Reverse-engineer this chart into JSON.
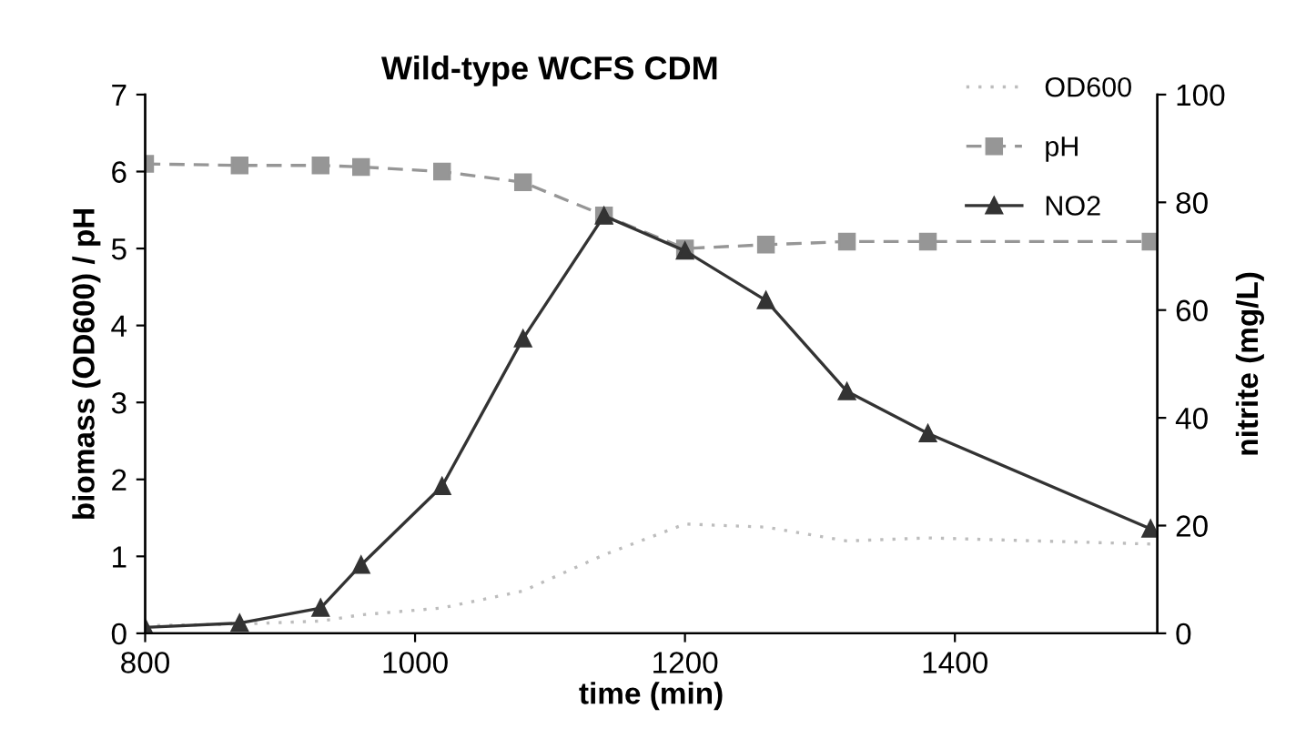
{
  "chart_data": {
    "type": "line",
    "title": "Wild-type WCFS CDM",
    "xlabel": "time (min)",
    "ylabel": "biomass (OD600) / pH",
    "y2label": "nitrite (mg/L)",
    "x": [
      800,
      870,
      930,
      960,
      1020,
      1080,
      1140,
      1200,
      1260,
      1320,
      1380,
      1545
    ],
    "series": [
      {
        "name": "OD600",
        "color": "#bdbdbd",
        "line_style": "dotted",
        "marker": "none",
        "values": [
          0.1,
          0.12,
          0.16,
          0.24,
          0.33,
          0.55,
          1.02,
          1.42,
          1.38,
          1.2,
          1.24,
          1.16
        ]
      },
      {
        "name": "pH",
        "color": "#969696",
        "line_style": "dashed",
        "marker": "square",
        "values": [
          6.1,
          6.08,
          6.08,
          6.06,
          6.0,
          5.86,
          5.43,
          5.0,
          5.05,
          5.09,
          5.09,
          5.09
        ]
      },
      {
        "name": "NO2",
        "color": "#333333",
        "line_style": "solid",
        "marker": "triangle",
        "axis": "y2",
        "values": [
          1.1,
          1.9,
          4.7,
          12.7,
          27.3,
          54.7,
          77.5,
          71.0,
          61.8,
          44.9,
          37.1,
          19.4
        ]
      }
    ],
    "xlim": [
      800,
      1550
    ],
    "xticks": [
      800,
      1000,
      1200,
      1400
    ],
    "ylim": [
      0,
      7
    ],
    "yticks": [
      0,
      1,
      2,
      3,
      4,
      5,
      6,
      7
    ],
    "y2lim": [
      0,
      100
    ],
    "y2ticks": [
      0,
      20,
      40,
      60,
      80,
      100
    ],
    "grid": false,
    "legend": "top right"
  }
}
